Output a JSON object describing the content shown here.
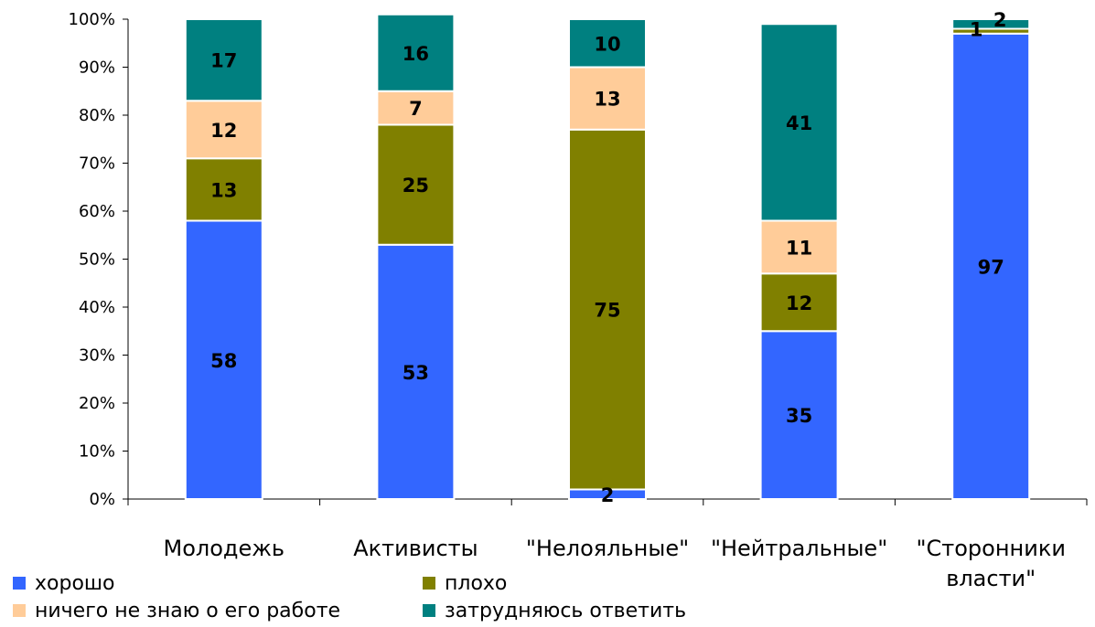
{
  "chart_data": {
    "type": "bar",
    "stacked": true,
    "percent_axis": true,
    "categories": [
      "Молодежь",
      "Активисты",
      "\"Нелояльные\"",
      "\"Нейтральные\"",
      "\"Сторонники власти\""
    ],
    "category_lines": [
      [
        "Молодежь"
      ],
      [
        "Активисты"
      ],
      [
        "\"Нелояльные\""
      ],
      [
        "\"Нейтральные\""
      ],
      [
        "\"Сторонники",
        "власти\""
      ]
    ],
    "series": [
      {
        "name": "хорошо",
        "color": "#3366FF",
        "values": [
          58,
          53,
          2,
          35,
          97
        ]
      },
      {
        "name": "плохо",
        "color": "#808000",
        "values": [
          13,
          25,
          75,
          12,
          1
        ]
      },
      {
        "name": "ничего не знаю о его работе",
        "color": "#FFCC99",
        "values": [
          12,
          7,
          13,
          11,
          0
        ]
      },
      {
        "name": "затрудняюсь ответить",
        "color": "#008080",
        "values": [
          17,
          16,
          10,
          41,
          2
        ]
      }
    ],
    "ylim": [
      0,
      100
    ],
    "yticks": [
      "0%",
      "10%",
      "20%",
      "30%",
      "40%",
      "50%",
      "60%",
      "70%",
      "80%",
      "90%",
      "100%"
    ],
    "legend_position": "bottom-left",
    "grid": false
  },
  "legend": {
    "items": [
      {
        "label": "хорошо",
        "color": "#3366FF"
      },
      {
        "label": "плохо",
        "color": "#808000"
      },
      {
        "label": "ничего не знаю о его работе",
        "color": "#FFCC99"
      },
      {
        "label": "затрудняюсь ответить",
        "color": "#008080"
      }
    ]
  }
}
